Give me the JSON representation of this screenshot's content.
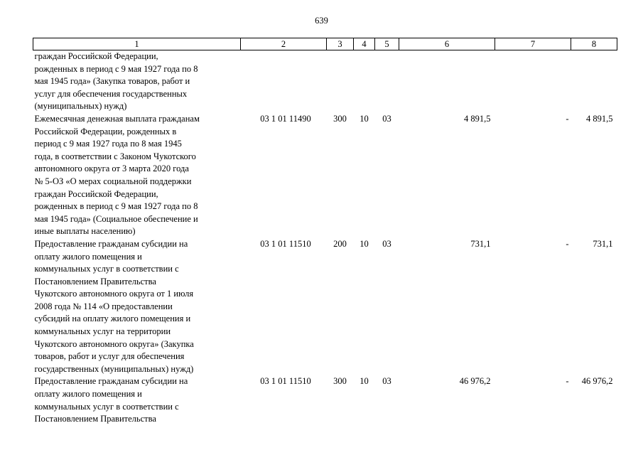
{
  "page": {
    "number": "639"
  },
  "table": {
    "headers": [
      "1",
      "2",
      "3",
      "4",
      "5",
      "6",
      "7",
      "8"
    ],
    "rows": [
      {
        "description": "граждан Российской Федерации,\nрожденных в период с 9 мая 1927 года по 8\nмая 1945 года» (Закупка товаров, работ и\nуслуг для обеспечения государственных\n(муниципальных) нужд)",
        "code": "",
        "type": "",
        "section": "",
        "subsection": "",
        "amount": "",
        "change": "",
        "total": ""
      },
      {
        "description": "Ежемесячная денежная выплата гражданам\nРоссийской Федерации, рожденных в\nпериод с 9 мая 1927 года по 8 мая 1945\nгода, в соответствии с Законом Чукотского\nавтономного округа от 3 марта 2020 года\n№ 5-ОЗ «О мерах социальной поддержки\nграждан Российской Федерации,\nрожденных в период с 9 мая 1927 года по 8\nмая 1945 года» (Социальное обеспечение и\nиные выплаты населению)",
        "code": "03 1 01 11490",
        "type": "300",
        "section": "10",
        "subsection": "03",
        "amount": "4 891,5",
        "change": "-",
        "total": "4 891,5"
      },
      {
        "description": "Предоставление гражданам субсидии на\nоплату жилого помещения и\nкоммунальных услуг в соответствии с\nПостановлением Правительства\nЧукотского автономного округа от 1 июля\n2008 года № 114 «О предоставлении\nсубсидий на оплату жилого помещения и\nкоммунальных услуг на территории\nЧукотского автономного округа» (Закупка\nтоваров, работ и услуг для обеспечения\nгосударственных (муниципальных) нужд)",
        "code": "03 1 01 11510",
        "type": "200",
        "section": "10",
        "subsection": "03",
        "amount": "731,1",
        "change": "-",
        "total": "731,1"
      },
      {
        "description": "Предоставление гражданам субсидии на\nоплату жилого помещения и\nкоммунальных услуг в соответствии с\nПостановлением Правительства",
        "code": "03 1 01 11510",
        "type": "300",
        "section": "10",
        "subsection": "03",
        "amount": "46 976,2",
        "change": "-",
        "total": "46 976,2"
      }
    ]
  }
}
